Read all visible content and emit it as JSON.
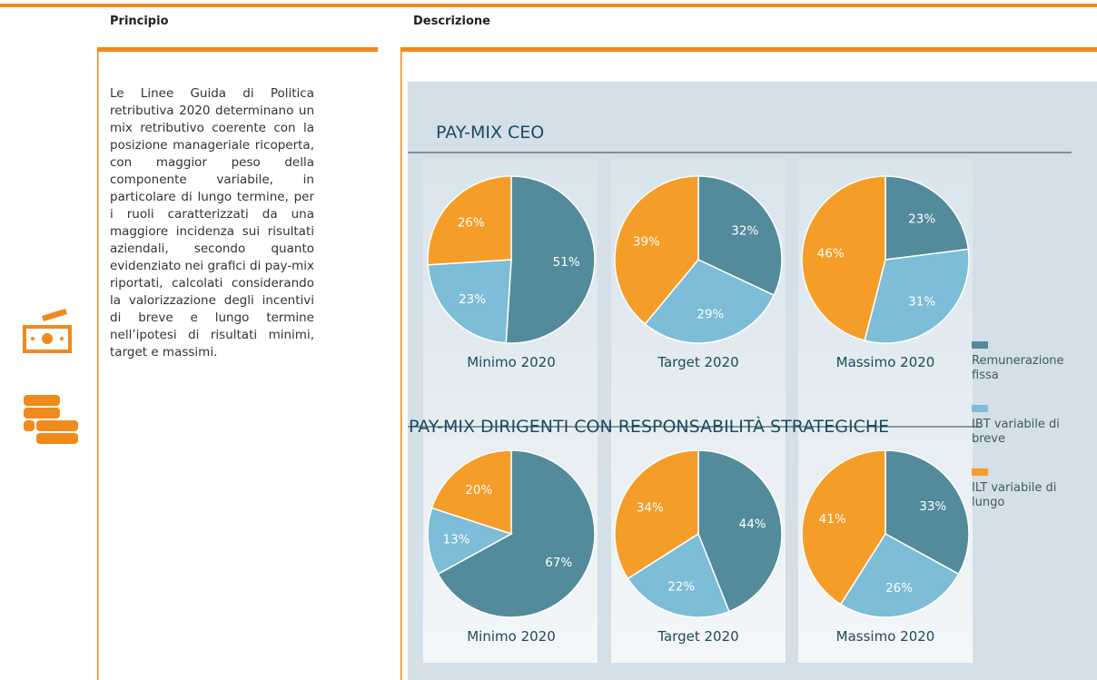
{
  "header": {
    "col1": "Principio",
    "col2": "Descrizione"
  },
  "body_text": "Le Linee Guida di Politica retributiva 2020 determinano un mix retributivo coerente con la posizione manageriale ricoperta, con maggior peso della componente variabile, in particolare di lungo termine, per i ruoli caratterizzati da una maggiore incidenza sui risultati aziendali, secondo quanto evidenziato nei grafici di pay-mix riportati, calcolati considerando la valorizzazione degli incentivi di breve e lungo termine nell’ipotesi di risultati minimi, target e massimi.",
  "section_titles": [
    "PAY-MIX CEO",
    "PAY-MIX DIRIGENTI CON RESPONSABILITÀ STRATEGICHE"
  ],
  "legend": [
    {
      "name": "Remunerazione fissa",
      "color": "#538b9b"
    },
    {
      "name": "IBT variabile di breve",
      "color": "#7dbdd7"
    },
    {
      "name": "ILT variabile di lungo",
      "color": "#f59d29"
    }
  ],
  "chart_data": [
    {
      "type": "pie",
      "title": "Minimo 2020",
      "values": [
        51,
        23,
        26
      ],
      "value_labels": [
        "51%",
        "23%",
        "26%"
      ]
    },
    {
      "type": "pie",
      "title": "Target 2020",
      "values": [
        32,
        29,
        39
      ],
      "value_labels": [
        "32%",
        "29%",
        "39%"
      ]
    },
    {
      "type": "pie",
      "title": "Massimo 2020",
      "values": [
        23,
        31,
        46
      ],
      "value_labels": [
        "23%",
        "31%",
        "46%"
      ]
    },
    {
      "type": "pie",
      "title": "Minimo 2020",
      "values": [
        67,
        13,
        20
      ],
      "value_labels": [
        "67%",
        "13%",
        "20%"
      ]
    },
    {
      "type": "pie",
      "title": "Target 2020",
      "values": [
        44,
        22,
        34
      ],
      "value_labels": [
        "44%",
        "22%",
        "34%"
      ]
    },
    {
      "type": "pie",
      "title": "Massimo 2020",
      "values": [
        33,
        26,
        41
      ],
      "value_labels": [
        "33%",
        "26%",
        "41%"
      ]
    }
  ]
}
